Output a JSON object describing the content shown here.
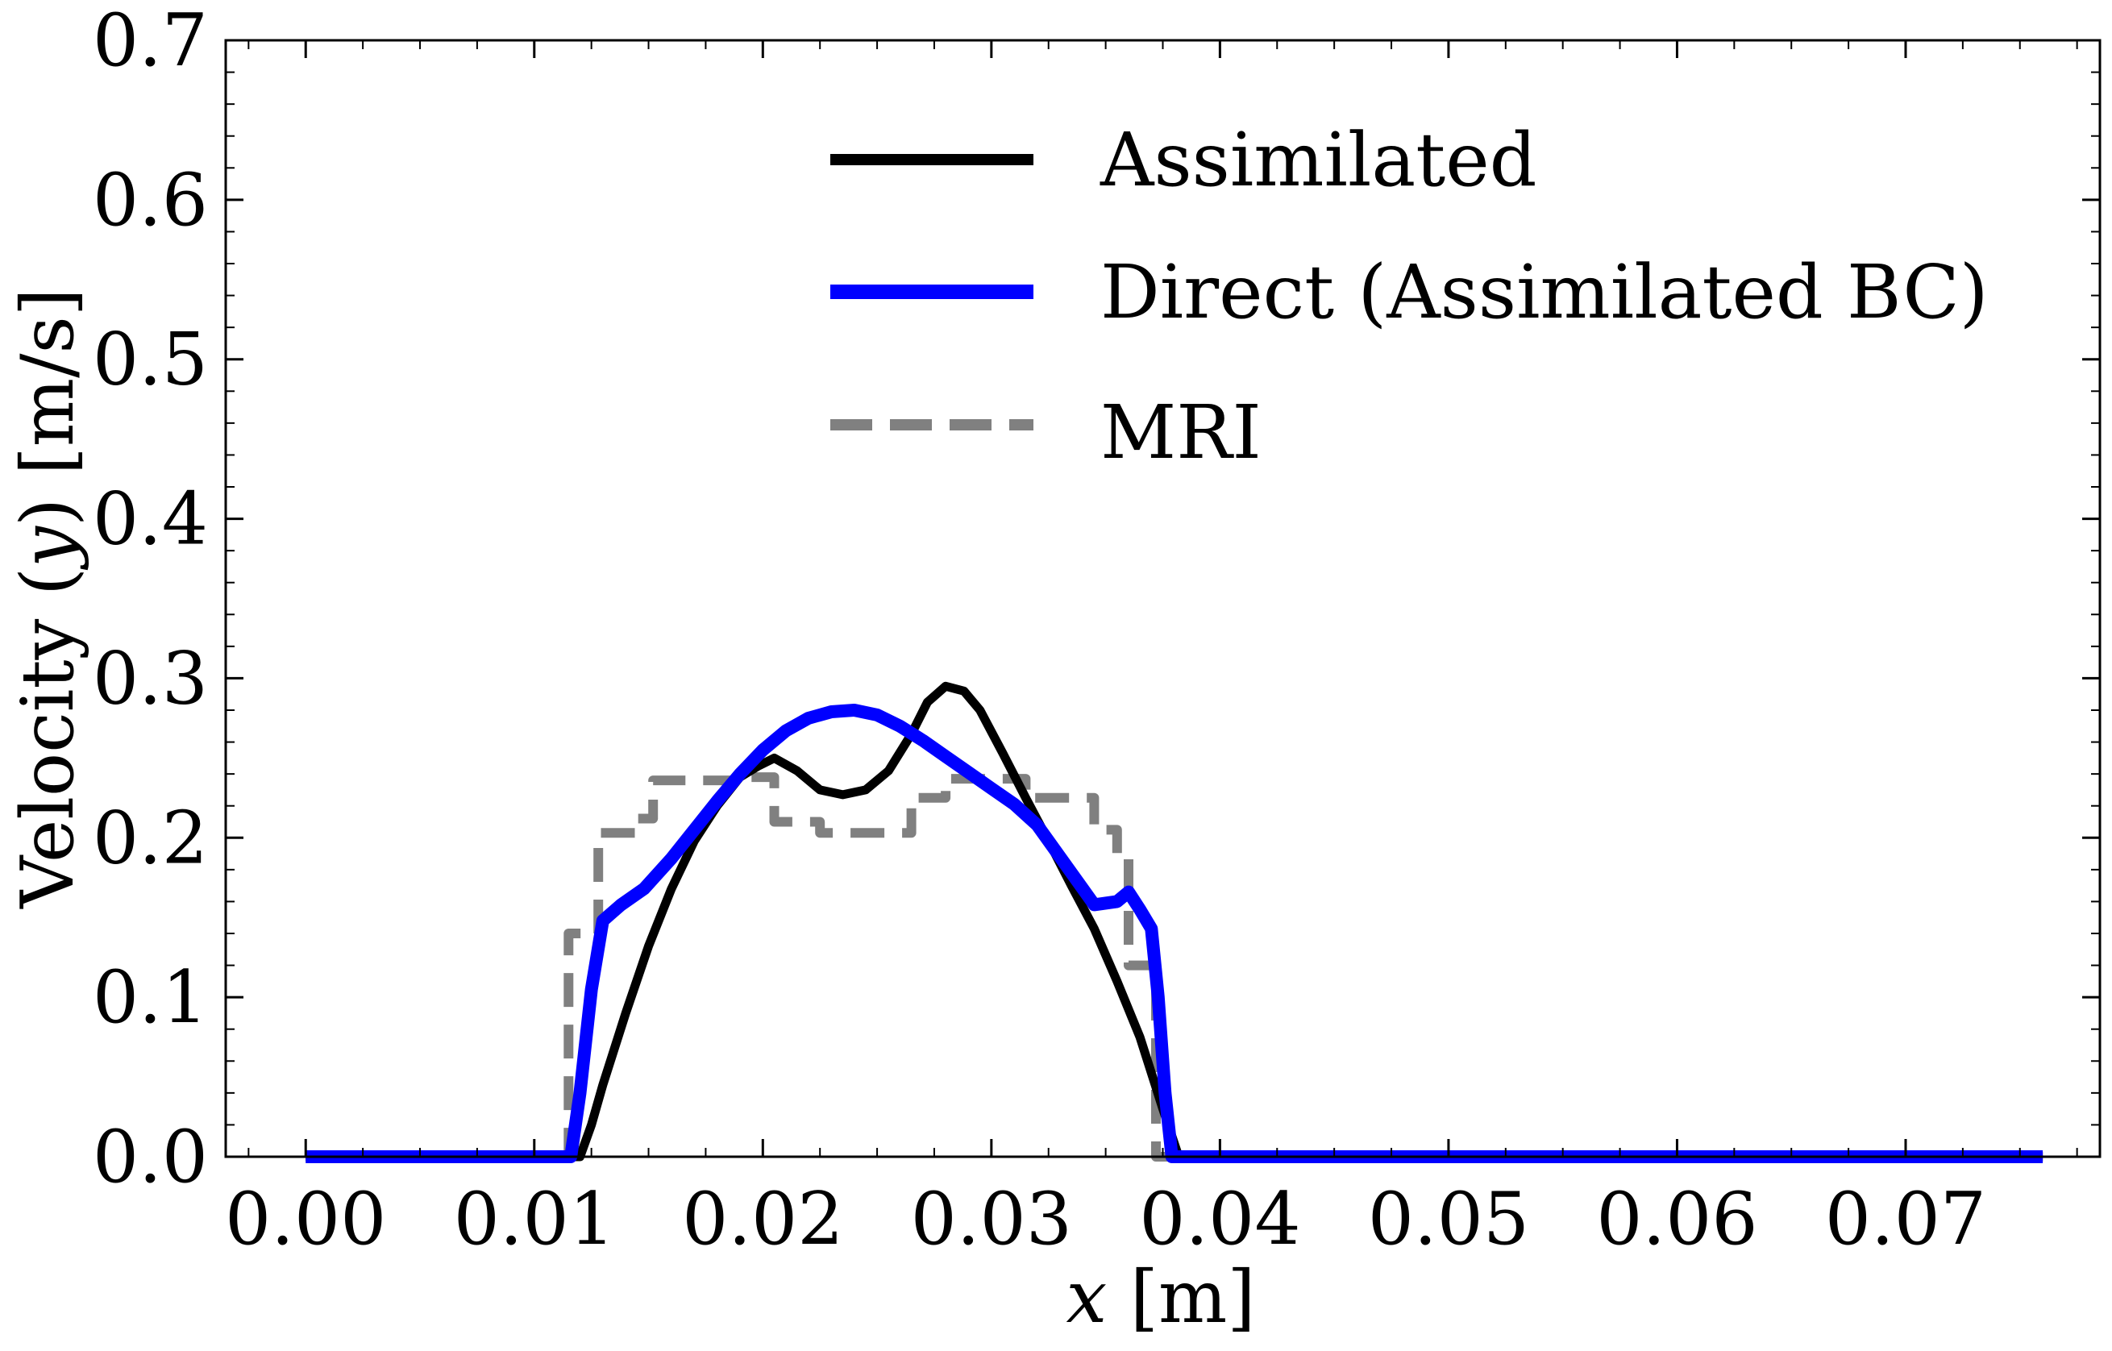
{
  "chart_data": {
    "type": "line",
    "xlabel": "x [m]",
    "xlabel_var": "x",
    "xlabel_unit": " [m]",
    "ylabel": "Velocity (y) [m/s]",
    "ylabel_pre": "Velocity (",
    "ylabel_var": "y",
    "ylabel_post": ") [m/s]",
    "xlim": [
      -0.0035,
      0.0785
    ],
    "ylim": [
      0,
      0.7
    ],
    "x_ticks": [
      "0.00",
      "0.01",
      "0.02",
      "0.03",
      "0.04",
      "0.05",
      "0.06",
      "0.07"
    ],
    "y_ticks": [
      "0.0",
      "0.1",
      "0.2",
      "0.3",
      "0.4",
      "0.5",
      "0.6",
      "0.7"
    ],
    "legend_position": "top-right",
    "series": [
      {
        "name": "Assimilated",
        "color": "#000000",
        "style": "solid",
        "points": [
          [
            0.0,
            0.0
          ],
          [
            0.0118,
            0.0
          ],
          [
            0.012,
            0.0
          ],
          [
            0.0125,
            0.02
          ],
          [
            0.013,
            0.045
          ],
          [
            0.014,
            0.09
          ],
          [
            0.015,
            0.132
          ],
          [
            0.016,
            0.168
          ],
          [
            0.017,
            0.198
          ],
          [
            0.018,
            0.22
          ],
          [
            0.019,
            0.238
          ],
          [
            0.0198,
            0.245
          ],
          [
            0.0205,
            0.25
          ],
          [
            0.0215,
            0.242
          ],
          [
            0.0225,
            0.23
          ],
          [
            0.0235,
            0.227
          ],
          [
            0.0245,
            0.23
          ],
          [
            0.0255,
            0.242
          ],
          [
            0.0265,
            0.265
          ],
          [
            0.0272,
            0.285
          ],
          [
            0.028,
            0.295
          ],
          [
            0.0288,
            0.292
          ],
          [
            0.0295,
            0.28
          ],
          [
            0.0305,
            0.253
          ],
          [
            0.0315,
            0.225
          ],
          [
            0.0325,
            0.198
          ],
          [
            0.0335,
            0.17
          ],
          [
            0.0345,
            0.143
          ],
          [
            0.0355,
            0.11
          ],
          [
            0.0365,
            0.075
          ],
          [
            0.0375,
            0.03
          ],
          [
            0.0382,
            0.0
          ],
          [
            0.076,
            0.0
          ]
        ]
      },
      {
        "name": "Direct (Assimilated BC)",
        "color": "#0000ff",
        "style": "solid",
        "points": [
          [
            0.0,
            0.0
          ],
          [
            0.0113,
            0.0
          ],
          [
            0.0116,
            0.0
          ],
          [
            0.012,
            0.04
          ],
          [
            0.0125,
            0.105
          ],
          [
            0.013,
            0.148
          ],
          [
            0.0138,
            0.158
          ],
          [
            0.0148,
            0.168
          ],
          [
            0.016,
            0.187
          ],
          [
            0.017,
            0.205
          ],
          [
            0.018,
            0.223
          ],
          [
            0.019,
            0.24
          ],
          [
            0.02,
            0.255
          ],
          [
            0.021,
            0.267
          ],
          [
            0.022,
            0.275
          ],
          [
            0.023,
            0.279
          ],
          [
            0.024,
            0.28
          ],
          [
            0.025,
            0.277
          ],
          [
            0.026,
            0.27
          ],
          [
            0.027,
            0.261
          ],
          [
            0.028,
            0.251
          ],
          [
            0.029,
            0.241
          ],
          [
            0.03,
            0.231
          ],
          [
            0.031,
            0.221
          ],
          [
            0.032,
            0.208
          ],
          [
            0.033,
            0.188
          ],
          [
            0.034,
            0.168
          ],
          [
            0.0345,
            0.158
          ],
          [
            0.0355,
            0.16
          ],
          [
            0.036,
            0.166
          ],
          [
            0.0365,
            0.155
          ],
          [
            0.037,
            0.143
          ],
          [
            0.0373,
            0.1
          ],
          [
            0.0376,
            0.04
          ],
          [
            0.0379,
            0.0
          ],
          [
            0.076,
            0.0
          ]
        ]
      },
      {
        "name": "MRI",
        "color": "#808080",
        "style": "dashed",
        "points": [
          [
            0.0,
            0.0
          ],
          [
            0.0113,
            0.0
          ],
          [
            0.0115,
            0.0
          ],
          [
            0.0115,
            0.14
          ],
          [
            0.0128,
            0.14
          ],
          [
            0.0128,
            0.203
          ],
          [
            0.0145,
            0.203
          ],
          [
            0.0145,
            0.212
          ],
          [
            0.0152,
            0.212
          ],
          [
            0.0152,
            0.236
          ],
          [
            0.0192,
            0.236
          ],
          [
            0.0192,
            0.238
          ],
          [
            0.0205,
            0.238
          ],
          [
            0.0205,
            0.21
          ],
          [
            0.0225,
            0.21
          ],
          [
            0.0225,
            0.203
          ],
          [
            0.0265,
            0.203
          ],
          [
            0.0265,
            0.225
          ],
          [
            0.028,
            0.225
          ],
          [
            0.028,
            0.237
          ],
          [
            0.0315,
            0.237
          ],
          [
            0.0315,
            0.225
          ],
          [
            0.0345,
            0.225
          ],
          [
            0.0345,
            0.205
          ],
          [
            0.0355,
            0.205
          ],
          [
            0.0355,
            0.188
          ],
          [
            0.036,
            0.188
          ],
          [
            0.036,
            0.12
          ],
          [
            0.0372,
            0.12
          ],
          [
            0.0372,
            0.0
          ],
          [
            0.076,
            0.0
          ]
        ]
      }
    ]
  }
}
